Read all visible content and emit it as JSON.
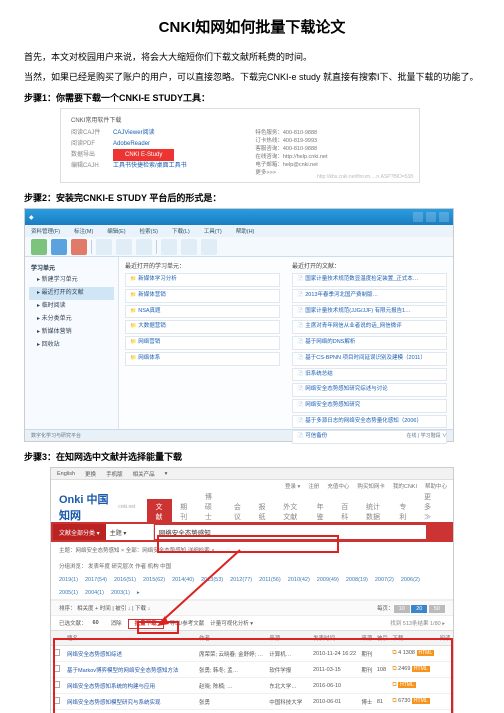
{
  "title": "CNKI知网如何批量下载论文",
  "intro1": "首先，本文对校园用户来说，将会大大缩短你们下载文献所耗费的时间。",
  "intro2": "当然，如果已经是购买了账户的用户，可以直接忽略。下载完CNKI-e study 就直接有搜索I下、批量下载的功能了。",
  "step1_label": "步骤1：你需要下载一个CNKI-E STUDY工具：",
  "step2_label": "步骤2：安装完CNKI-E STUDY 平台后的形式是：",
  "step3_label": "步骤3：在知网选中文献并选择能量下载",
  "shot1": {
    "header": "CNKI常用软件下载",
    "left": [
      {
        "lbl": "阅读CAJ件",
        "val": "CAJViewer阅读"
      },
      {
        "lbl": "阅读PDF",
        "val": "AdobeReader"
      },
      {
        "lbl": "数据导出",
        "val": "CNKI E-Study",
        "hot": true
      },
      {
        "lbl": "编辑CAJH",
        "val": "工具书快捷检索/桌面工具书"
      }
    ],
    "right": [
      "特色服务：400-810-9888",
      "订卡热线：400-819-9993",
      "客服咨询：400-810-9888",
      "在线咨询：http://help.cnki.net",
      "电子邮箱：help@cnki.net",
      "更多>>>"
    ],
    "tiny": "http://kbs.cnki.net/forum.…n.ASP?BID=538"
  },
  "shot2": {
    "menus": [
      "资料管理(F)",
      "标注(M)",
      "编辑(E)",
      "检索(S)",
      "下载(L)",
      "工具(T)",
      "帮助(H)"
    ],
    "sidebar_title": "学习单元",
    "sidebar_items": [
      "▸ 新建学习单元",
      "▸ 最近打开的文献",
      "▸ 临时阅读",
      "▸ 未分类单元",
      "▸ 新媒体营销",
      "▸ 回收站"
    ],
    "col1_hdr": "最近打开的学习单元：",
    "col1_items": [
      "新媒体学习分析",
      "新媒体营销",
      "NSA真题",
      "大数据营销",
      "网络营销",
      "网络体系"
    ],
    "col2_hdr": "最近打开的文献：",
    "col2_items": [
      "国家计量技术规范数显温度检定装置_正式本…",
      "2013年春季河北国产费制版…",
      "国家计量技术规范(JJG/JJF) 有限元报告1…",
      "主席对青年网信从业者说的话_网信微评",
      "基于网络的DNS解析",
      "基于CS-BPNN 项目时间延误识别及建模（2011）",
      "旧系统总结",
      "网络安全态势感知研究综述与讨论",
      "网络安全态势感知研究",
      "基于多源日志的网络安全态势量化感知（2006）",
      "可信备份"
    ],
    "status_l": "数字化学习与研究平台",
    "status_r": "在线   |   学习階段   ∨"
  },
  "shot3": {
    "bartabs": [
      "English",
      "更换",
      "手机版",
      "相关产品",
      "▾"
    ],
    "toplinks": [
      "登录 ▾",
      "注册",
      "充值中心",
      "购买知网卡",
      "我的CNKI",
      "帮助中心"
    ],
    "logo": "Onki 中国知网",
    "logosub": "cnki.net",
    "nav": [
      {
        "t": "文献",
        "a": true
      },
      {
        "t": "期刊"
      },
      {
        "t": "博硕士"
      },
      {
        "t": "会议"
      },
      {
        "t": "报纸"
      },
      {
        "t": "外文文献"
      },
      {
        "t": "年鉴"
      },
      {
        "t": "百科"
      },
      {
        "t": "统计数据"
      },
      {
        "t": "专利"
      },
      {
        "t": "更多≫"
      }
    ],
    "cat": "文献全部分类  ▾",
    "field": "主题          ▾",
    "query": "网络安全态势感知",
    "sub1": "主题：网络安全态势感知 ×     全部：网络安全态势感知   详细检索 ×",
    "sub2": "分组浏览：   发表年度   研究层次   作者   机构   中国",
    "years": [
      "2019(1)",
      "2017(54)",
      "2016(51)",
      "2015(62)",
      "2014(40)",
      "2013(53)",
      "2012(77)",
      "2011(56)",
      "2010(42)",
      "2009(49)",
      "2008(19)",
      "2007(2)",
      "2006(2)",
      "2005(1)",
      "2004(1)",
      "2003(1)",
      "▸"
    ],
    "group": "排序：  相关度  +  时间  |  被引 ↓ |  下载 ↓",
    "sort_tabs": [
      "相关度",
      "出版",
      "被引",
      "下载"
    ],
    "count_lbl": "已选文献：",
    "count_val": "60",
    "actions": [
      "消除",
      "批量下载",
      "导出/参考文献",
      "计量可视化分析 ▾"
    ],
    "right_info": "找到 513条结果    1/80 ▸",
    "thead": [
      "",
      "题名",
      "作者",
      "来源",
      "发表时间",
      "来源",
      "被引",
      "下载",
      "阅读"
    ],
    "rows": [
      {
        "title": "网络安全态势感知综述",
        "authors": "席荣荣; 云晓春; 金舒婷; …",
        "src": "计算机…",
        "date": "2010-11-24 16:22",
        "db": "期刊",
        "cited": "",
        "dl": "4    1308"
      },
      {
        "title": "基于Markov博弈模型的网络安全态势感知方法",
        "authors": "张勇; 韩冬; 孟…",
        "src": "软件学报",
        "date": "2011-03-15",
        "db": "期刊",
        "cited": "108",
        "dl": "2469"
      },
      {
        "title": "网络安全态势感知系统的构建与应用",
        "authors": "赵晓; 陈楠; …",
        "src": "东北大学…",
        "date": "2016-06-10",
        "db": "",
        "cited": "",
        "dl": ""
      },
      {
        "title": "网络安全态势感知模型研究与系统实现",
        "authors": "张勇",
        "src": "中国科技大学",
        "date": "2010-06-01",
        "db": "博士",
        "cited": "81",
        "dl": "6730"
      },
      {
        "title": "基于多源融合的网络安全态势量化感知与评估",
        "authors": "刘念祖",
        "src": "哈尔滨工业大学",
        "date": "2009-09-01",
        "db": "博士",
        "cited": "16",
        "dl": "1060"
      }
    ]
  }
}
